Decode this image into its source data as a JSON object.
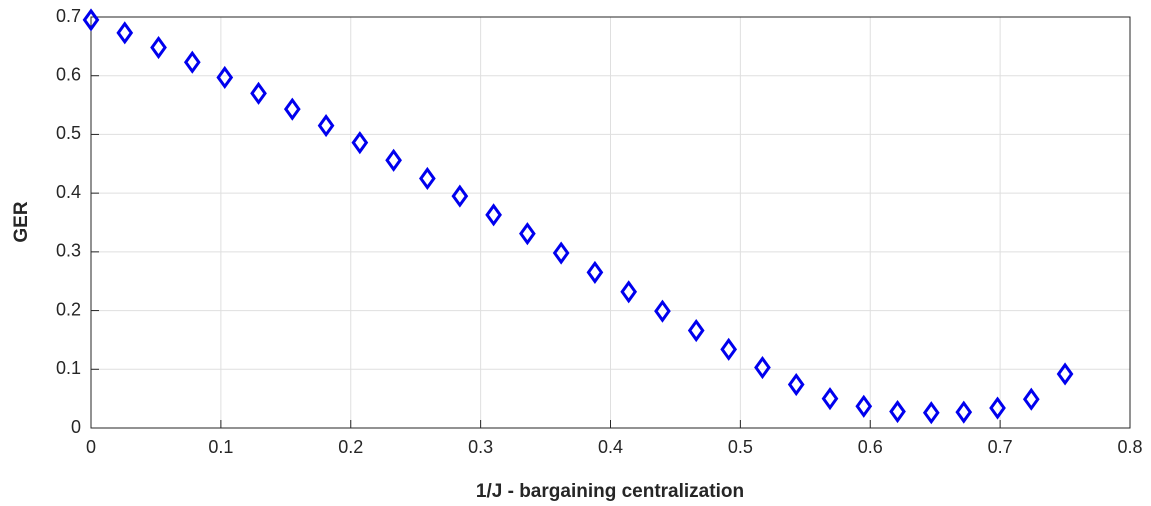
{
  "chart_data": {
    "type": "scatter",
    "x_label": "1/J - bargaining centralization",
    "y_label": "GER",
    "series": [
      {
        "color": "#0000ee",
        "x": [
          0,
          0.026,
          0.052,
          0.078,
          0.103,
          0.129,
          0.155,
          0.181,
          0.207,
          0.233,
          0.259,
          0.284,
          0.31,
          0.336,
          0.362,
          0.388,
          0.414,
          0.44,
          0.466,
          0.491,
          0.517,
          0.543,
          0.569,
          0.595,
          0.621,
          0.647,
          0.672,
          0.698,
          0.724,
          0.75
        ],
        "values": [
          0.695,
          0.673,
          0.648,
          0.623,
          0.597,
          0.57,
          0.543,
          0.515,
          0.486,
          0.456,
          0.425,
          0.395,
          0.363,
          0.331,
          0.298,
          0.265,
          0.232,
          0.199,
          0.166,
          0.134,
          0.103,
          0.074,
          0.05,
          0.037,
          0.028,
          0.026,
          0.027,
          0.034,
          0.049,
          0.092
        ]
      }
    ],
    "xlim": [
      0,
      0.8
    ],
    "xticks": [
      0,
      0.1,
      0.2,
      0.3,
      0.4,
      0.5,
      0.6,
      0.7,
      0.8
    ],
    "ylim": [
      0,
      0.7
    ],
    "yticks": [
      0,
      0.1,
      0.2,
      0.3,
      0.4,
      0.5,
      0.6,
      0.7
    ],
    "grid": true
  }
}
